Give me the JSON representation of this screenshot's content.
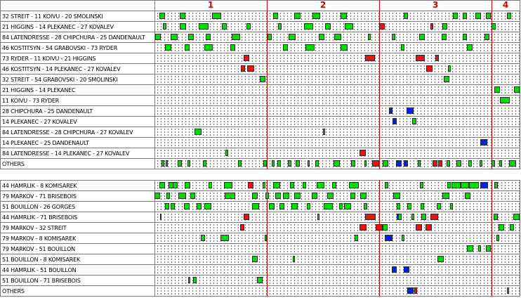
{
  "colors": {
    "even": "#00dd00",
    "for_goal": "#ee1111",
    "against_goal": "#0022ee",
    "period_line": "#d40000"
  },
  "periods": [
    "1",
    "2",
    "3",
    "4"
  ],
  "top_rows": [
    "32 STREIT - 11 KOIVU - 20 SMOLINSKI",
    "21 HIGGINS - 14 PLEKANEC - 27 KOVALEV",
    "84 LATENDRESSE - 28 CHIPCHURA - 25 DANDENAULT",
    "46 KOSTITSYN - 54 GRABOVSKI - 73 RYDER",
    "73 RYDER - 11 KOIVU - 21 HIGGINS",
    "46 KOSTITSYN - 14 PLEKANEC - 27 KOVALEV",
    "32 STREIT - 54 GRABOVSKI - 20 SMOLINSKI",
    "21 HIGGINS - 14 PLEKANEC",
    "11 KOIVU - 73 RYDER",
    "28 CHIPCHURA - 25 DANDENAULT",
    "14 PLEKANEC - 27 KOVALEV",
    "84 LATENDRESSE - 28 CHIPCHURA - 27 KOVALEV",
    "14 PLEKANEC - 25 DANDENAULT",
    "84 LATENDRESSE - 14 PLEKANEC - 27 KOVALEV",
    "OTHERS"
  ],
  "bottom_rows": [
    "44 HAMRLIK - 8 KOMISAREK",
    "79 MARKOV - 71 BRISEBOIS",
    "51 BOUILLON - 26 GORGES",
    "44 HAMRLIK - 71 BRISEBOIS",
    "79 MARKOV - 32 STREIT",
    "79 MARKOV - 8 KOMISAREK",
    "79 MARKOV - 51 BOUILLON",
    "51 BOUILLON - 8 KOMISAREK",
    "44 HAMRLIK - 51 BOUILLON",
    "51 BOUILLON - 71 BRISEBOIS",
    "OTHERS"
  ]
}
